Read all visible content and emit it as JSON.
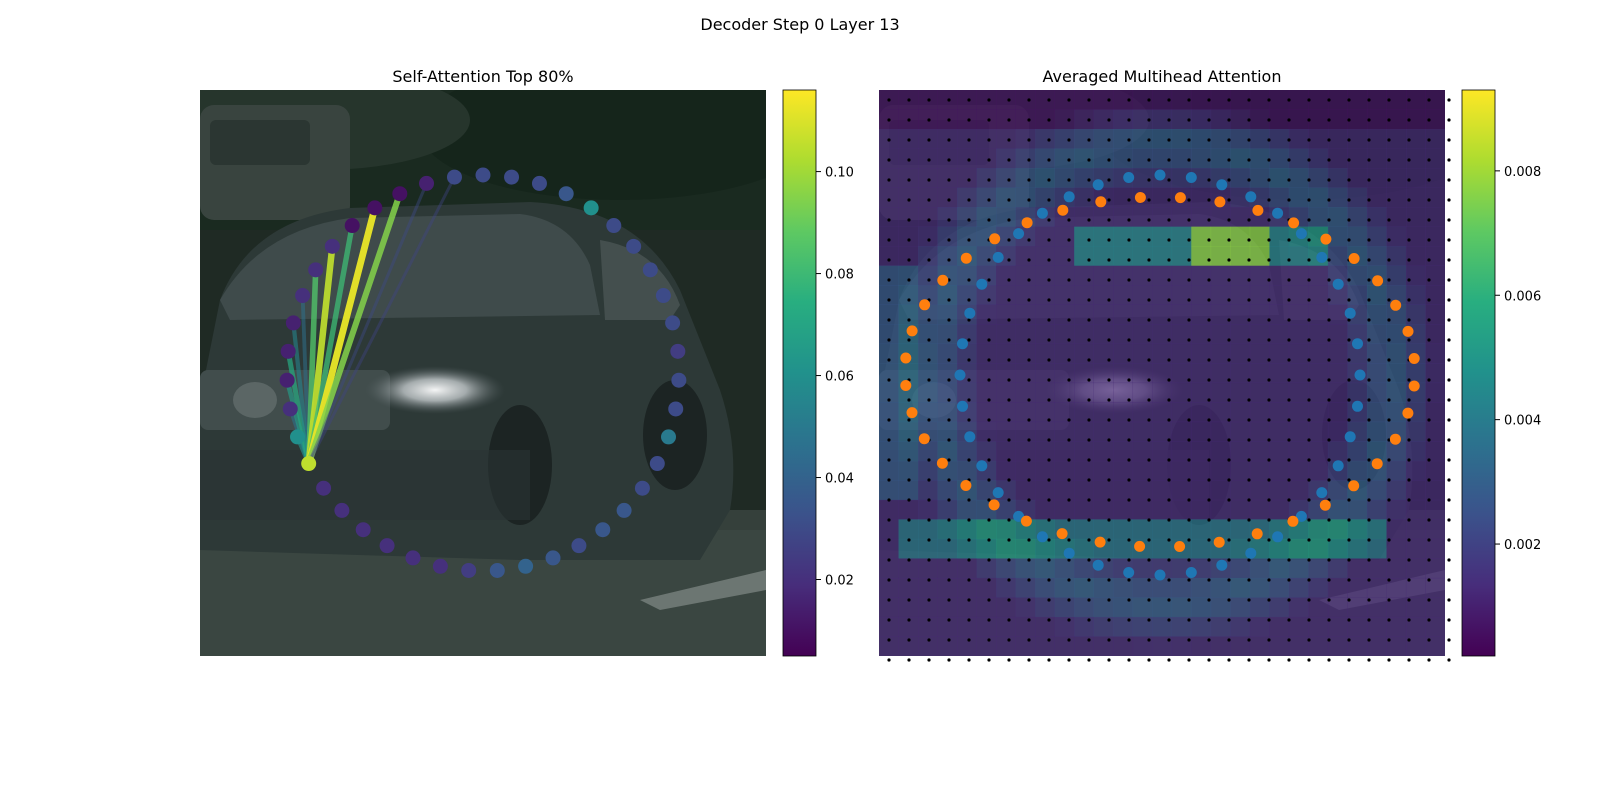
{
  "figure": {
    "suptitle": "Decoder Step 0 Layer 13"
  },
  "chart_data": [
    {
      "type": "scatter",
      "title": "Self-Attention Top 80%",
      "xlabel": "",
      "ylabel": "",
      "background": "dark street photo with a black car",
      "colormap": "viridis",
      "colorbar": {
        "ticks": [
          0.02,
          0.04,
          0.06,
          0.08,
          0.1
        ],
        "tick_labels": [
          "0.02",
          "0.04",
          "0.06",
          "0.08",
          "0.10"
        ],
        "range": [
          0.005,
          0.116
        ]
      },
      "query_point_index": 29,
      "point_values": [
        0.03,
        0.03,
        0.03,
        0.035,
        0.06,
        0.03,
        0.03,
        0.03,
        0.03,
        0.03,
        0.025,
        0.03,
        0.03,
        0.05,
        0.03,
        0.03,
        0.035,
        0.035,
        0.03,
        0.035,
        0.04,
        0.035,
        0.025,
        0.02,
        0.02,
        0.02,
        0.02,
        0.02,
        0.02,
        0.105,
        0.06,
        0.02,
        0.015,
        0.015,
        0.015,
        0.02,
        0.02,
        0.02,
        0.01,
        0.01,
        0.01,
        0.015,
        0.03
      ],
      "attention_edges": [
        {
          "to": 30,
          "weight": 0.062
        },
        {
          "to": 31,
          "weight": 0.048
        },
        {
          "to": 32,
          "weight": 0.066
        },
        {
          "to": 33,
          "weight": 0.072
        },
        {
          "to": 34,
          "weight": 0.055
        },
        {
          "to": 35,
          "weight": 0.046
        },
        {
          "to": 36,
          "weight": 0.085
        },
        {
          "to": 37,
          "weight": 0.105
        },
        {
          "to": 38,
          "weight": 0.08
        },
        {
          "to": 39,
          "weight": 0.112
        },
        {
          "to": 40,
          "weight": 0.095
        },
        {
          "to": 41,
          "weight": 0.03
        },
        {
          "to": 42,
          "weight": 0.028
        }
      ]
    },
    {
      "type": "heatmap",
      "title": "Averaged Multihead Attention",
      "xlabel": "",
      "ylabel": "",
      "colormap": "viridis",
      "colorbar": {
        "ticks": [
          0.002,
          0.004,
          0.006,
          0.008
        ],
        "tick_labels": [
          "0.002",
          "0.004",
          "0.006",
          "0.008"
        ],
        "range": [
          0.0002,
          0.0093
        ]
      },
      "grid_points": "29 x 29 black reference dots",
      "series": [
        {
          "name": "",
          "color": "#1f77b4",
          "count": 40
        },
        {
          "name": "",
          "color": "#ff7f0e",
          "count": 40
        }
      ]
    }
  ],
  "colors": {
    "blue_series": "#1f77b4",
    "orange_series": "#ff7f0e"
  }
}
